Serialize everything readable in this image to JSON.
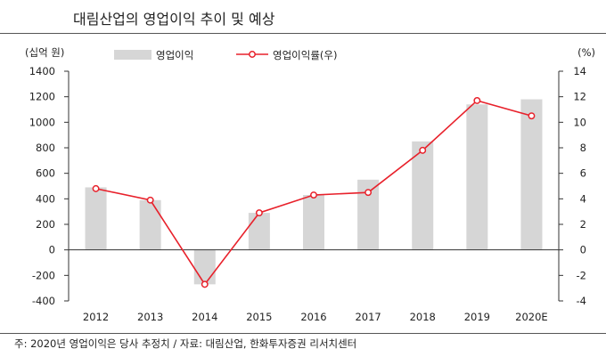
{
  "header": {
    "title": "대림산업의 영업이익 추이 및 예상"
  },
  "footer": {
    "note": "주: 2020년 영업이익은 당사 추정치 / 자료: 대림산업, 한화투자증권 리서치센터"
  },
  "chart_data": {
    "type": "bar",
    "categories": [
      "2012",
      "2013",
      "2014",
      "2015",
      "2016",
      "2017",
      "2018",
      "2019",
      "2020E"
    ],
    "series": [
      {
        "name": "영업이익",
        "type": "bar",
        "axis": "left",
        "color": "#d6d6d6",
        "values": [
          490,
          390,
          -270,
          290,
          430,
          550,
          850,
          1140,
          1180
        ]
      },
      {
        "name": "영업이익률(우)",
        "type": "line",
        "axis": "right",
        "color": "#e8212b",
        "values": [
          4.8,
          3.9,
          -2.7,
          2.9,
          4.3,
          4.5,
          7.8,
          11.7,
          10.5
        ]
      }
    ],
    "left_axis": {
      "unit": "(십억  원)",
      "range": [
        -400,
        1400
      ],
      "ticks": [
        "1400",
        "1200",
        "1000",
        "800",
        "600",
        "400",
        "200",
        "0",
        "-200",
        "-400"
      ]
    },
    "right_axis": {
      "unit": "(%)",
      "range": [
        -4,
        14
      ],
      "ticks": [
        "14",
        "12",
        "10",
        "8",
        "6",
        "4",
        "2",
        "0",
        "-2",
        "-4"
      ]
    },
    "grid": false,
    "legend": "top"
  }
}
